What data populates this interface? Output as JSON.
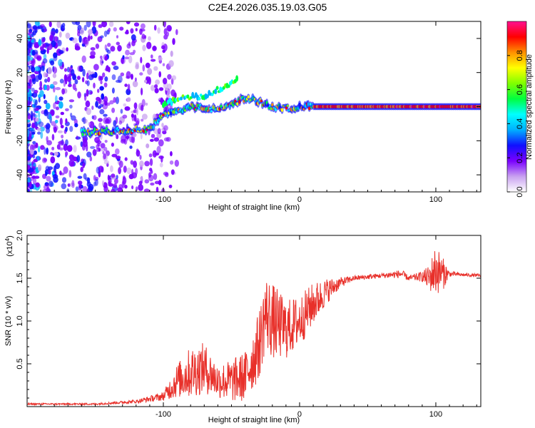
{
  "title": "C2E4.2026.035.19.03.G05",
  "chart_data": [
    {
      "type": "heatmap",
      "name": "spectrogram",
      "xlabel": "Height of straight line (km)",
      "ylabel": "Frequency (Hz)",
      "xlim": [
        -200,
        133
      ],
      "ylim": [
        -50,
        50
      ],
      "x_ticks": [
        -100,
        0,
        100
      ],
      "x_tick_labels": [
        "-100",
        "0",
        "100"
      ],
      "y_ticks": [
        -40,
        -20,
        0,
        20,
        40
      ],
      "y_tick_labels": [
        "-40",
        "-20",
        "0",
        "20",
        "40"
      ],
      "ridge": {
        "description_points_x": [
          -155,
          -130,
          -110,
          -100,
          -80,
          -60,
          -40,
          -30,
          -20,
          -10,
          0,
          20,
          60,
          100,
          133
        ],
        "description_points_y": [
          -15,
          -14,
          -13,
          -5,
          0,
          -2,
          5,
          3,
          0,
          -1,
          0,
          0,
          0,
          0,
          0
        ],
        "upper_branch_x": [
          -100,
          -85,
          -70,
          -55,
          -45
        ],
        "upper_branch_y": [
          2,
          5,
          6,
          12,
          16
        ]
      },
      "colorbar": {
        "label": "Normalized spectral amplitude",
        "range": [
          0,
          1
        ],
        "ticks": [
          0.0,
          0.2,
          0.4,
          0.6,
          0.8
        ],
        "tick_labels": [
          "0.0",
          "0.2",
          "0.4",
          "0.6",
          "0.8"
        ],
        "colors": [
          "#ffffff",
          "#c8a0f0",
          "#7a00ff",
          "#1010ff",
          "#00b0ff",
          "#00ffff",
          "#00ff40",
          "#80ff00",
          "#ffff00",
          "#ff9000",
          "#ff0000",
          "#ff1090"
        ]
      }
    },
    {
      "type": "line",
      "name": "snr",
      "xlabel": "Height of straight line (km)",
      "ylabel": "SNR (10 * v/v)",
      "exponent_label": "(x10",
      "exponent_power": "4",
      "exponent_close": ")",
      "xlim": [
        -200,
        133
      ],
      "ylim": [
        0,
        2.0
      ],
      "x_ticks": [
        -100,
        0,
        100
      ],
      "x_tick_labels": [
        "-100",
        "0",
        "100"
      ],
      "y_ticks": [
        0.5,
        1.0,
        1.5,
        2.0
      ],
      "y_tick_labels": [
        "0.5",
        "1.0",
        "1.5",
        "2.0"
      ],
      "series": [
        {
          "name": "SNR",
          "color": "#e8302a",
          "envelope_x": [
            -200,
            -150,
            -120,
            -100,
            -90,
            -80,
            -70,
            -60,
            -50,
            -40,
            -30,
            -25,
            -20,
            -10,
            0,
            10,
            20,
            30,
            40,
            60,
            75,
            80,
            90,
            95,
            100,
            105,
            110,
            120,
            133
          ],
          "envelope_y": [
            0.03,
            0.03,
            0.06,
            0.12,
            0.3,
            0.4,
            0.45,
            0.3,
            0.3,
            0.35,
            0.7,
            1.1,
            1.0,
            0.9,
            1.0,
            1.2,
            1.35,
            1.45,
            1.5,
            1.53,
            1.55,
            1.5,
            1.52,
            1.5,
            1.6,
            1.55,
            1.55,
            1.54,
            1.53
          ],
          "noise_amp": [
            0.01,
            0.01,
            0.02,
            0.05,
            0.2,
            0.3,
            0.3,
            0.2,
            0.25,
            0.3,
            0.4,
            0.45,
            0.45,
            0.35,
            0.3,
            0.25,
            0.15,
            0.06,
            0.03,
            0.03,
            0.05,
            0.03,
            0.06,
            0.15,
            0.3,
            0.2,
            0.03,
            0.02,
            0.02
          ]
        }
      ]
    }
  ]
}
